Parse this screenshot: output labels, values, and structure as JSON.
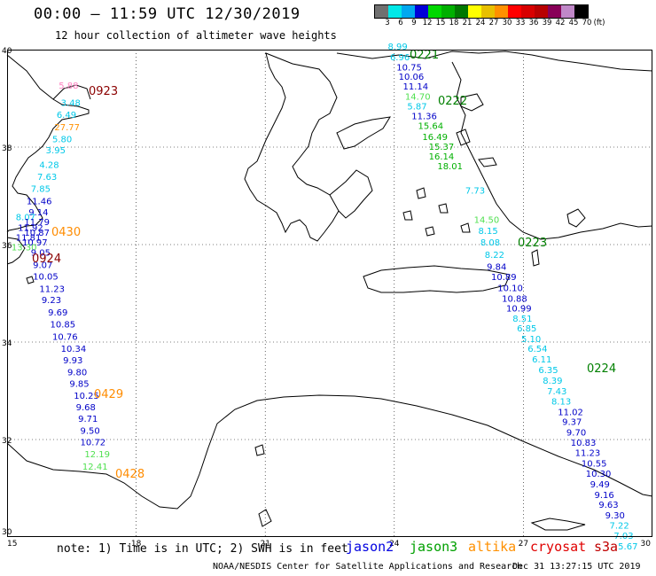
{
  "header": {
    "title": "00:00 – 11:59 UTC 12/30/2019",
    "subtitle": "12 hour collection of altimeter wave heights"
  },
  "colorbar": {
    "unit": "(ft)",
    "labels": [
      "3",
      "6",
      "9",
      "12",
      "15",
      "18",
      "21",
      "24",
      "27",
      "30",
      "33",
      "36",
      "39",
      "42",
      "45",
      "70"
    ],
    "colors": [
      "#707070",
      "#00e8e8",
      "#00a8f0",
      "#0000d8",
      "#00d800",
      "#00b000",
      "#007800",
      "#ffff00",
      "#e8c000",
      "#ff9000",
      "#ff0000",
      "#d80000",
      "#b80000",
      "#880058",
      "#c088c8",
      "#000000"
    ]
  },
  "axes": {
    "lon_ticks": [
      "15",
      "18",
      "21",
      "24",
      "27",
      "30"
    ],
    "lat_ticks": [
      "40",
      "38",
      "36",
      "34",
      "32",
      "30"
    ]
  },
  "tracks": [
    {
      "time": "0923",
      "color": "#8b0000"
    },
    {
      "time": "0430",
      "color": "#ff8c00"
    },
    {
      "time": "0924",
      "color": "#8b0000"
    },
    {
      "time": "0429",
      "color": "#ff8c00"
    },
    {
      "time": "0428",
      "color": "#ff8c00"
    },
    {
      "time": "0221",
      "color": "#008000"
    },
    {
      "time": "0222",
      "color": "#008000"
    },
    {
      "time": "0223",
      "color": "#008000"
    },
    {
      "time": "0224",
      "color": "#008000"
    }
  ],
  "observations": [
    {
      "lon": 16.2,
      "lat": 39.2,
      "v": "5.88",
      "c": "#ff80c0"
    },
    {
      "lon": 16.25,
      "lat": 38.85,
      "v": "3.48",
      "c": "#00c8e8"
    },
    {
      "lon": 16.15,
      "lat": 38.6,
      "v": "6.49",
      "c": "#00c8e8"
    },
    {
      "lon": 16.1,
      "lat": 38.35,
      "v": "27.77",
      "c": "#ff9000"
    },
    {
      "lon": 16.05,
      "lat": 38.1,
      "v": "5.80",
      "c": "#00c8e8"
    },
    {
      "lon": 15.9,
      "lat": 37.87,
      "v": "3.95",
      "c": "#00c8e8"
    },
    {
      "lon": 15.75,
      "lat": 37.57,
      "v": "4.28",
      "c": "#00c8e8"
    },
    {
      "lon": 15.7,
      "lat": 37.33,
      "v": "7.63",
      "c": "#00c8e8"
    },
    {
      "lon": 15.55,
      "lat": 37.08,
      "v": "7.85",
      "c": "#00c8e8"
    },
    {
      "lon": 15.45,
      "lat": 36.83,
      "v": "11.46",
      "c": "#0000c8"
    },
    {
      "lon": 15.5,
      "lat": 36.6,
      "v": "9.14",
      "c": "#0000c8"
    },
    {
      "lon": 15.2,
      "lat": 36.5,
      "v": "8.07",
      "c": "#00c8e8"
    },
    {
      "lon": 15.4,
      "lat": 36.4,
      "v": "11.79",
      "c": "#0000c8"
    },
    {
      "lon": 15.25,
      "lat": 36.28,
      "v": "11.92",
      "c": "#0000c8"
    },
    {
      "lon": 15.4,
      "lat": 36.18,
      "v": "10.87",
      "c": "#0000c8"
    },
    {
      "lon": 15.2,
      "lat": 36.08,
      "v": "11.81",
      "c": "#0000c8"
    },
    {
      "lon": 15.35,
      "lat": 35.98,
      "v": "10.97",
      "c": "#0000c8"
    },
    {
      "lon": 15.1,
      "lat": 35.88,
      "v": "13.30",
      "c": "#50e050"
    },
    {
      "lon": 15.55,
      "lat": 35.77,
      "v": "9.05",
      "c": "#0000c8"
    },
    {
      "lon": 15.6,
      "lat": 35.52,
      "v": "9.07",
      "c": "#0000c8"
    },
    {
      "lon": 15.6,
      "lat": 35.28,
      "v": "10.05",
      "c": "#0000c8"
    },
    {
      "lon": 15.75,
      "lat": 35.03,
      "v": "11.23",
      "c": "#0000c8"
    },
    {
      "lon": 15.8,
      "lat": 34.8,
      "v": "9.23",
      "c": "#0000c8"
    },
    {
      "lon": 15.95,
      "lat": 34.55,
      "v": "9.69",
      "c": "#0000c8"
    },
    {
      "lon": 16.0,
      "lat": 34.3,
      "v": "10.85",
      "c": "#0000c8"
    },
    {
      "lon": 16.05,
      "lat": 34.05,
      "v": "10.76",
      "c": "#0000c8"
    },
    {
      "lon": 16.25,
      "lat": 33.8,
      "v": "10.34",
      "c": "#0000c8"
    },
    {
      "lon": 16.3,
      "lat": 33.56,
      "v": "9.93",
      "c": "#0000c8"
    },
    {
      "lon": 16.4,
      "lat": 33.32,
      "v": "9.80",
      "c": "#0000c8"
    },
    {
      "lon": 16.45,
      "lat": 33.08,
      "v": "9.85",
      "c": "#0000c8"
    },
    {
      "lon": 16.55,
      "lat": 32.84,
      "v": "10.25",
      "c": "#0000c8"
    },
    {
      "lon": 16.6,
      "lat": 32.6,
      "v": "9.68",
      "c": "#0000c8"
    },
    {
      "lon": 16.65,
      "lat": 32.36,
      "v": "9.71",
      "c": "#0000c8"
    },
    {
      "lon": 16.7,
      "lat": 32.12,
      "v": "9.50",
      "c": "#0000c8"
    },
    {
      "lon": 16.7,
      "lat": 31.88,
      "v": "10.72",
      "c": "#0000c8"
    },
    {
      "lon": 16.8,
      "lat": 31.64,
      "v": "12.19",
      "c": "#50e050"
    },
    {
      "lon": 16.75,
      "lat": 31.38,
      "v": "12.41",
      "c": "#50e050"
    },
    {
      "lon": 23.85,
      "lat": 40.0,
      "v": "8.99",
      "c": "#00c8e8"
    },
    {
      "lon": 23.9,
      "lat": 39.78,
      "v": "6.96",
      "c": "#00c8e8"
    },
    {
      "lon": 24.05,
      "lat": 39.57,
      "v": "10.75",
      "c": "#0000c8"
    },
    {
      "lon": 24.1,
      "lat": 39.38,
      "v": "10.06",
      "c": "#0000c8"
    },
    {
      "lon": 24.2,
      "lat": 39.18,
      "v": "11.14",
      "c": "#0000c8"
    },
    {
      "lon": 24.25,
      "lat": 38.97,
      "v": "14.70",
      "c": "#50e050"
    },
    {
      "lon": 24.3,
      "lat": 38.77,
      "v": "5.87",
      "c": "#00c8e8"
    },
    {
      "lon": 24.4,
      "lat": 38.57,
      "v": "11.36",
      "c": "#0000c8"
    },
    {
      "lon": 24.55,
      "lat": 38.37,
      "v": "15.64",
      "c": "#00b000"
    },
    {
      "lon": 24.65,
      "lat": 38.15,
      "v": "16.49",
      "c": "#00b000"
    },
    {
      "lon": 24.8,
      "lat": 37.95,
      "v": "15.37",
      "c": "#00b000"
    },
    {
      "lon": 24.8,
      "lat": 37.75,
      "v": "16.14",
      "c": "#00b000"
    },
    {
      "lon": 25.0,
      "lat": 37.55,
      "v": "18.01",
      "c": "#00b000"
    },
    {
      "lon": 25.65,
      "lat": 37.05,
      "v": "7.73",
      "c": "#00c8e8"
    },
    {
      "lon": 25.85,
      "lat": 36.45,
      "v": "14.50",
      "c": "#50e050"
    },
    {
      "lon": 25.95,
      "lat": 36.22,
      "v": "8.15",
      "c": "#00c8e8"
    },
    {
      "lon": 26.0,
      "lat": 35.98,
      "v": "8.08",
      "c": "#00c8e8"
    },
    {
      "lon": 26.1,
      "lat": 35.73,
      "v": "8.22",
      "c": "#00c8e8"
    },
    {
      "lon": 26.15,
      "lat": 35.48,
      "v": "9.84",
      "c": "#0000c8"
    },
    {
      "lon": 26.25,
      "lat": 35.27,
      "v": "10.89",
      "c": "#0000c8"
    },
    {
      "lon": 26.4,
      "lat": 35.05,
      "v": "10.10",
      "c": "#0000c8"
    },
    {
      "lon": 26.5,
      "lat": 34.83,
      "v": "10.88",
      "c": "#0000c8"
    },
    {
      "lon": 26.6,
      "lat": 34.63,
      "v": "10.99",
      "c": "#0000c8"
    },
    {
      "lon": 26.75,
      "lat": 34.42,
      "v": "8.51",
      "c": "#00c8e8"
    },
    {
      "lon": 26.85,
      "lat": 34.22,
      "v": "6.85",
      "c": "#00c8e8"
    },
    {
      "lon": 26.95,
      "lat": 34.0,
      "v": "5.10",
      "c": "#00c8e8"
    },
    {
      "lon": 27.1,
      "lat": 33.8,
      "v": "6.54",
      "c": "#00c8e8"
    },
    {
      "lon": 27.2,
      "lat": 33.58,
      "v": "6.11",
      "c": "#00c8e8"
    },
    {
      "lon": 27.35,
      "lat": 33.36,
      "v": "6.35",
      "c": "#00c8e8"
    },
    {
      "lon": 27.45,
      "lat": 33.15,
      "v": "8.39",
      "c": "#00c8e8"
    },
    {
      "lon": 27.55,
      "lat": 32.93,
      "v": "7.43",
      "c": "#00c8e8"
    },
    {
      "lon": 27.65,
      "lat": 32.72,
      "v": "8.13",
      "c": "#00c8e8"
    },
    {
      "lon": 27.8,
      "lat": 32.5,
      "v": "11.02",
      "c": "#0000c8"
    },
    {
      "lon": 27.9,
      "lat": 32.3,
      "v": "9.37",
      "c": "#0000c8"
    },
    {
      "lon": 28.0,
      "lat": 32.08,
      "v": "9.70",
      "c": "#0000c8"
    },
    {
      "lon": 28.1,
      "lat": 31.87,
      "v": "10.83",
      "c": "#0000c8"
    },
    {
      "lon": 28.2,
      "lat": 31.66,
      "v": "11.23",
      "c": "#0000c8"
    },
    {
      "lon": 28.35,
      "lat": 31.45,
      "v": "10.55",
      "c": "#0000c8"
    },
    {
      "lon": 28.45,
      "lat": 31.24,
      "v": "10.30",
      "c": "#0000c8"
    },
    {
      "lon": 28.55,
      "lat": 31.02,
      "v": "9.49",
      "c": "#0000c8"
    },
    {
      "lon": 28.65,
      "lat": 30.8,
      "v": "9.16",
      "c": "#0000c8"
    },
    {
      "lon": 28.75,
      "lat": 30.6,
      "v": "9.63",
      "c": "#0000c8"
    },
    {
      "lon": 28.9,
      "lat": 30.38,
      "v": "9.30",
      "c": "#0000c8"
    },
    {
      "lon": 29.0,
      "lat": 30.17,
      "v": "7.22",
      "c": "#00c8e8"
    },
    {
      "lon": 29.1,
      "lat": 29.96,
      "v": "7.03",
      "c": "#00c8e8"
    },
    {
      "lon": 29.2,
      "lat": 29.75,
      "v": "5.67",
      "c": "#00c8e8"
    }
  ],
  "legend": {
    "note": "note: 1) Time is in UTC; 2) SWH is in feet",
    "satellites": [
      {
        "name": "jason2",
        "color": "#0000e0"
      },
      {
        "name": "jason3",
        "color": "#00a000"
      },
      {
        "name": "altika",
        "color": "#ff9000"
      },
      {
        "name": "cryosat",
        "color": "#e00000"
      },
      {
        "name": "s3a",
        "color": "#c00000"
      }
    ]
  },
  "footer": {
    "credit": "NOAA/NESDIS Center for Satellite Applications and Research",
    "timestamp": "Dec 31 13:27:15 UTC 2019"
  }
}
